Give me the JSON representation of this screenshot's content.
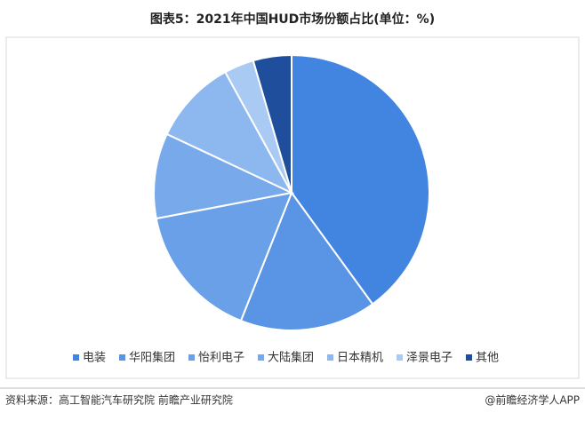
{
  "chart_data": {
    "type": "pie",
    "title": "图表5：2021年中国HUD市场份额占比(单位：%)",
    "categories": [
      "电装",
      "华阳集团",
      "怡利电子",
      "大陆集团",
      "日本精机",
      "泽景电子",
      "其他"
    ],
    "values": [
      40,
      16,
      16,
      10,
      10,
      3.5,
      4.5
    ],
    "colors": [
      "#4285e0",
      "#5a95e5",
      "#6aa0e8",
      "#78aaeb",
      "#8cb8ef",
      "#a9caf3",
      "#1f4e9c"
    ],
    "legend": "bottom"
  },
  "footer": {
    "source": "资料来源：高工智能汽车研究院 前瞻产业研究院",
    "brand": "@前瞻经济学人APP"
  }
}
